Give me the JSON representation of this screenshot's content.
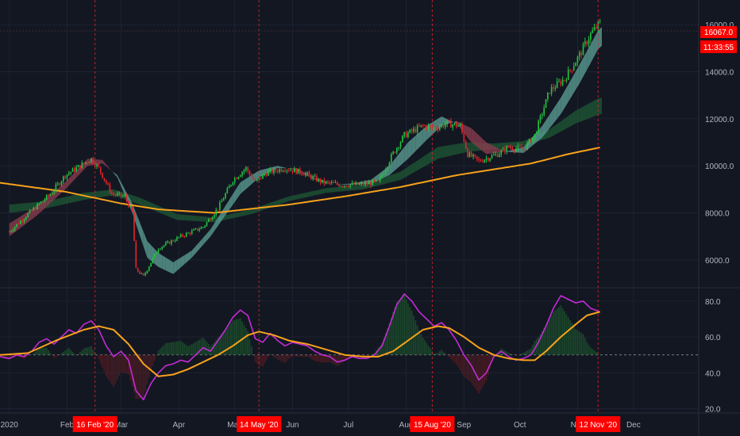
{
  "colors": {
    "background": "#131722",
    "grid": "#1e2233",
    "separator": "#2a2e39",
    "up_candle": "#26c041",
    "down_candle": "#e0242c",
    "ema_200": "#f7a21b",
    "rsi_line": "#c42bd6",
    "rsi_signal": "#f7a21b",
    "ribbon_fast_up": "#5a9b92",
    "ribbon_fast_down": "#8a3c4e",
    "ribbon_slow": "#1f5a36",
    "event_marker": "#e0242c",
    "badge": "#ff0000"
  },
  "price_badge": {
    "price": "16067.0",
    "countdown": "11:33:55"
  },
  "chart_data": [
    {
      "type": "candlestick",
      "panel": "price",
      "ylim": [
        4850,
        17050
      ],
      "y_ticks": [
        "6000.0",
        "8000.0",
        "10000.0",
        "12000.0",
        "14000.0",
        "16000.0"
      ],
      "y_tick_values": [
        6000,
        8000,
        10000,
        12000,
        14000,
        16000
      ],
      "x_labels": [
        "2020",
        "Feb",
        "Mar",
        "Apr",
        "May",
        "Jun",
        "Jul",
        "Aug",
        "Sep",
        "Oct",
        "Nov",
        "Dec"
      ],
      "x_label_days": [
        0,
        31,
        60,
        91,
        121,
        152,
        182,
        213,
        244,
        274,
        305,
        335
      ],
      "xlim_days": [
        -5,
        370
      ],
      "date_axis_start": "2020-01-01",
      "last_candle_day": 317,
      "anchors": [
        [
          0,
          7200
        ],
        [
          12,
          8100
        ],
        [
          22,
          8800
        ],
        [
          30,
          9600
        ],
        [
          44,
          10300
        ],
        [
          48,
          9900
        ],
        [
          55,
          8800
        ],
        [
          62,
          8700
        ],
        [
          66,
          8000
        ],
        [
          68,
          5600
        ],
        [
          72,
          5300
        ],
        [
          80,
          6500
        ],
        [
          92,
          7000
        ],
        [
          104,
          7400
        ],
        [
          112,
          8200
        ],
        [
          120,
          9400
        ],
        [
          127,
          9900
        ],
        [
          132,
          9300
        ],
        [
          138,
          9700
        ],
        [
          148,
          9900
        ],
        [
          158,
          9700
        ],
        [
          168,
          9300
        ],
        [
          178,
          9200
        ],
        [
          188,
          9200
        ],
        [
          198,
          9300
        ],
        [
          205,
          10400
        ],
        [
          212,
          11300
        ],
        [
          222,
          11700
        ],
        [
          228,
          11600
        ],
        [
          235,
          11800
        ],
        [
          242,
          11700
        ],
        [
          246,
          10500
        ],
        [
          252,
          10200
        ],
        [
          262,
          10500
        ],
        [
          268,
          10800
        ],
        [
          276,
          10700
        ],
        [
          282,
          11300
        ],
        [
          290,
          13200
        ],
        [
          298,
          13700
        ],
        [
          306,
          14700
        ],
        [
          312,
          15600
        ],
        [
          317,
          16067
        ]
      ],
      "ema_200_anchors": [
        [
          -5,
          9280
        ],
        [
          30,
          8900
        ],
        [
          60,
          8400
        ],
        [
          80,
          8150
        ],
        [
          110,
          8000
        ],
        [
          150,
          8350
        ],
        [
          180,
          8700
        ],
        [
          210,
          9100
        ],
        [
          240,
          9600
        ],
        [
          260,
          9850
        ],
        [
          280,
          10100
        ],
        [
          300,
          10500
        ],
        [
          317,
          10780
        ]
      ],
      "ribbon_fast_anchors": [
        [
          0,
          7000,
          7550
        ],
        [
          15,
          7900,
          8300
        ],
        [
          30,
          9000,
          9300
        ],
        [
          42,
          10000,
          10300
        ],
        [
          50,
          10100,
          10250
        ],
        [
          58,
          9600,
          9500
        ],
        [
          66,
          8400,
          8000
        ],
        [
          74,
          6800,
          6100
        ],
        [
          80,
          6300,
          5700
        ],
        [
          88,
          5900,
          5400
        ],
        [
          98,
          6400,
          6100
        ],
        [
          108,
          7300,
          7000
        ],
        [
          116,
          8300,
          7900
        ],
        [
          124,
          9300,
          8800
        ],
        [
          134,
          9800,
          9500
        ],
        [
          144,
          10000,
          9900
        ],
        [
          154,
          9800,
          9900
        ],
        [
          164,
          9400,
          9500
        ],
        [
          174,
          9200,
          9200
        ],
        [
          184,
          9250,
          9200
        ],
        [
          194,
          9400,
          9250
        ],
        [
          204,
          10000,
          9600
        ],
        [
          214,
          11000,
          10300
        ],
        [
          224,
          11700,
          11100
        ],
        [
          232,
          12100,
          11700
        ],
        [
          240,
          11800,
          11900
        ],
        [
          248,
          11000,
          11600
        ],
        [
          256,
          10500,
          11000
        ],
        [
          266,
          10600,
          10600
        ],
        [
          276,
          10800,
          10550
        ],
        [
          286,
          11700,
          11200
        ],
        [
          296,
          12900,
          12200
        ],
        [
          306,
          14300,
          13500
        ],
        [
          317,
          15900,
          15100
        ]
      ],
      "ribbon_slow_anchors": [
        [
          0,
          8350,
          8000
        ],
        [
          20,
          8500,
          8200
        ],
        [
          40,
          8850,
          8550
        ],
        [
          56,
          9000,
          8750
        ],
        [
          70,
          8650,
          8350
        ],
        [
          90,
          7950,
          7700
        ],
        [
          110,
          7800,
          7600
        ],
        [
          130,
          8150,
          7950
        ],
        [
          150,
          8700,
          8500
        ],
        [
          170,
          9050,
          8850
        ],
        [
          190,
          9200,
          9000
        ],
        [
          210,
          9750,
          9400
        ],
        [
          230,
          10800,
          10300
        ],
        [
          246,
          11000,
          10600
        ],
        [
          260,
          10950,
          10700
        ],
        [
          276,
          11050,
          10850
        ],
        [
          290,
          11550,
          11200
        ],
        [
          304,
          12350,
          11800
        ],
        [
          317,
          12900,
          12200
        ]
      ]
    },
    {
      "type": "line",
      "panel": "oscillator",
      "ylim": [
        18,
        87
      ],
      "y_ticks": [
        "20.0",
        "40.0",
        "60.0",
        "80.0"
      ],
      "y_tick_values": [
        20,
        40,
        60,
        80
      ],
      "midline": 50,
      "series": [
        {
          "color": "#c42bd6",
          "points": [
            [
              -5,
              49
            ],
            [
              0,
              48
            ],
            [
              4,
              50
            ],
            [
              8,
              49
            ],
            [
              12,
              52
            ],
            [
              16,
              57
            ],
            [
              20,
              59
            ],
            [
              24,
              56
            ],
            [
              28,
              60
            ],
            [
              32,
              64
            ],
            [
              36,
              62
            ],
            [
              40,
              67
            ],
            [
              44,
              69
            ],
            [
              48,
              64
            ],
            [
              52,
              55
            ],
            [
              56,
              49
            ],
            [
              60,
              52
            ],
            [
              64,
              47
            ],
            [
              68,
              30
            ],
            [
              72,
              25
            ],
            [
              76,
              34
            ],
            [
              80,
              40
            ],
            [
              84,
              44
            ],
            [
              88,
              45
            ],
            [
              92,
              47
            ],
            [
              96,
              46
            ],
            [
              100,
              50
            ],
            [
              104,
              54
            ],
            [
              108,
              52
            ],
            [
              112,
              58
            ],
            [
              116,
              64
            ],
            [
              120,
              71
            ],
            [
              124,
              75
            ],
            [
              128,
              72
            ],
            [
              132,
              59
            ],
            [
              136,
              57
            ],
            [
              140,
              62
            ],
            [
              144,
              58
            ],
            [
              148,
              55
            ],
            [
              152,
              57
            ],
            [
              156,
              56
            ],
            [
              160,
              55
            ],
            [
              164,
              52
            ],
            [
              168,
              50
            ],
            [
              172,
              49
            ],
            [
              176,
              46
            ],
            [
              180,
              47
            ],
            [
              184,
              49
            ],
            [
              188,
              48
            ],
            [
              192,
              48
            ],
            [
              196,
              50
            ],
            [
              200,
              55
            ],
            [
              204,
              66
            ],
            [
              208,
              78
            ],
            [
              212,
              84
            ],
            [
              216,
              80
            ],
            [
              220,
              74
            ],
            [
              224,
              70
            ],
            [
              228,
              66
            ],
            [
              232,
              68
            ],
            [
              236,
              64
            ],
            [
              240,
              58
            ],
            [
              244,
              50
            ],
            [
              248,
              44
            ],
            [
              252,
              36
            ],
            [
              256,
              40
            ],
            [
              260,
              49
            ],
            [
              264,
              52
            ],
            [
              268,
              49
            ],
            [
              272,
              47
            ],
            [
              276,
              48
            ],
            [
              280,
              50
            ],
            [
              284,
              57
            ],
            [
              288,
              66
            ],
            [
              292,
              76
            ],
            [
              296,
              83
            ],
            [
              300,
              81
            ],
            [
              304,
              79
            ],
            [
              308,
              80
            ],
            [
              312,
              76
            ],
            [
              317,
              74
            ]
          ]
        },
        {
          "color": "#f7a21b",
          "points": [
            [
              -5,
              50
            ],
            [
              10,
              51
            ],
            [
              25,
              58
            ],
            [
              40,
              64
            ],
            [
              48,
              66
            ],
            [
              56,
              64
            ],
            [
              64,
              56
            ],
            [
              72,
              45
            ],
            [
              80,
              38
            ],
            [
              88,
              39
            ],
            [
              96,
              42
            ],
            [
              104,
              46
            ],
            [
              112,
              50
            ],
            [
              120,
              55
            ],
            [
              128,
              61
            ],
            [
              134,
              63
            ],
            [
              142,
              61
            ],
            [
              150,
              58
            ],
            [
              160,
              56
            ],
            [
              170,
              53
            ],
            [
              180,
              50
            ],
            [
              190,
              49
            ],
            [
              198,
              49
            ],
            [
              206,
              52
            ],
            [
              214,
              58
            ],
            [
              222,
              64
            ],
            [
              230,
              66
            ],
            [
              236,
              65
            ],
            [
              244,
              60
            ],
            [
              252,
              54
            ],
            [
              260,
              50
            ],
            [
              268,
              48
            ],
            [
              276,
              47
            ],
            [
              282,
              47
            ],
            [
              288,
              52
            ],
            [
              296,
              60
            ],
            [
              304,
              67
            ],
            [
              310,
              72
            ],
            [
              317,
              74
            ]
          ]
        }
      ]
    }
  ],
  "event_markers": [
    {
      "label": "16 Feb '20",
      "day": 46
    },
    {
      "label": "14 May '20",
      "day": 134
    },
    {
      "label": "15 Aug '20",
      "day": 227
    },
    {
      "label": "12 Nov '20",
      "day": 316
    }
  ]
}
